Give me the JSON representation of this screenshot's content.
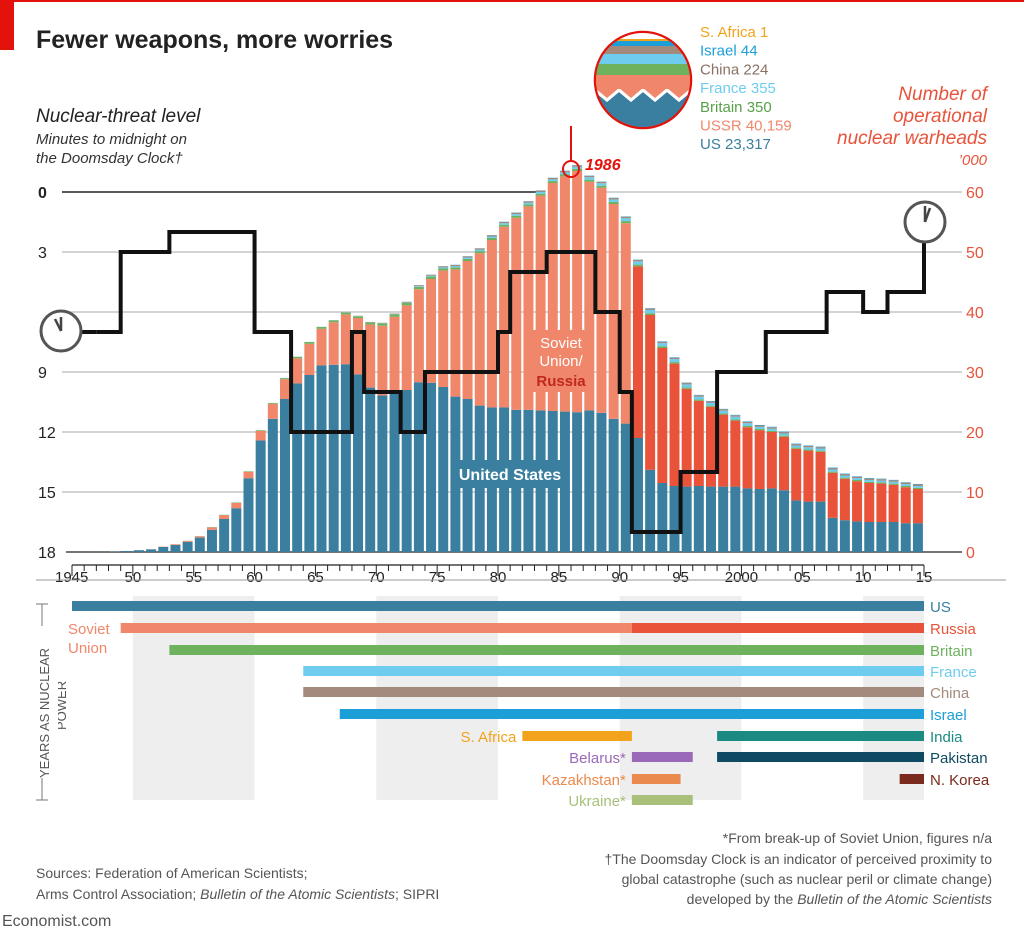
{
  "header": {
    "title": "Fewer weapons, more worries",
    "left_axis_title": "Nuclear-threat level",
    "left_axis_sub1": "Minutes to midnight on",
    "left_axis_sub2": "the Doomsday Clock†",
    "right_axis_title1": "Number of",
    "right_axis_title2": "operational",
    "right_axis_title3": "nuclear warheads",
    "right_axis_unit": "’000",
    "peak_year_label": "1986"
  },
  "colors": {
    "us": "#3a7f9f",
    "ussr": "#f0876b",
    "russia": "#e8533a",
    "britain": "#6fb25e",
    "france": "#6ecdee",
    "china": "#a28a7c",
    "israel": "#1b9fd6",
    "south_africa": "#f2a31c",
    "india": "#1a8a82",
    "pakistan": "#0f4a63",
    "belarus": "#9a6ab8",
    "kazakhstan": "#ea8a4e",
    "ukraine": "#a8c07a",
    "north_korea": "#7a2a1c",
    "accent_red": "#e3120b",
    "label_red": "#e8533a",
    "clock_line": "#111111",
    "grid": "#bbbbbb",
    "text": "#222222",
    "muted": "#555555"
  },
  "legend_1986": [
    {
      "country": "S. Africa",
      "value": "1",
      "color": "#f2a31c"
    },
    {
      "country": "Israel",
      "value": "44",
      "color": "#1b9fd6"
    },
    {
      "country": "China",
      "value": "224",
      "color": "#8a7264"
    },
    {
      "country": "France",
      "value": "355",
      "color": "#6ecdee"
    },
    {
      "country": "Britain",
      "value": "350",
      "color": "#5aa04a"
    },
    {
      "country": "USSR",
      "value": "40,159",
      "color": "#f0876b"
    },
    {
      "country": "US",
      "value": "23,317",
      "color": "#3a7f9f"
    }
  ],
  "chart_data": {
    "type": "bar",
    "subtype": "stacked bar with step line",
    "title": "Fewer weapons, more worries",
    "xlim": [
      1945,
      2015
    ],
    "x_ticks": [
      "1945",
      "50",
      "55",
      "60",
      "65",
      "70",
      "75",
      "80",
      "85",
      "90",
      "95",
      "2000",
      "05",
      "10",
      "15"
    ],
    "right_axis": {
      "label": "Number of operational nuclear warheads, '000",
      "range": [
        0,
        60
      ],
      "ticks": [
        "0",
        "10",
        "20",
        "30",
        "40",
        "50",
        "60"
      ]
    },
    "left_axis": {
      "label": "Nuclear-threat level: minutes to midnight on the Doomsday Clock",
      "range": [
        0,
        18
      ],
      "ticks": [
        "0",
        "3",
        "9",
        "12",
        "15",
        "18"
      ],
      "inverted": true
    },
    "years": [
      1945,
      1946,
      1947,
      1948,
      1949,
      1950,
      1951,
      1952,
      1953,
      1954,
      1955,
      1956,
      1957,
      1958,
      1959,
      1960,
      1961,
      1962,
      1963,
      1964,
      1965,
      1966,
      1967,
      1968,
      1969,
      1970,
      1971,
      1972,
      1973,
      1974,
      1975,
      1976,
      1977,
      1978,
      1979,
      1980,
      1981,
      1982,
      1983,
      1984,
      1985,
      1986,
      1987,
      1988,
      1989,
      1990,
      1991,
      1992,
      1993,
      1994,
      1995,
      1996,
      1997,
      1998,
      1999,
      2000,
      2001,
      2002,
      2003,
      2004,
      2005,
      2006,
      2007,
      2008,
      2009,
      2010,
      2011,
      2012,
      2013,
      2014
    ],
    "series": [
      {
        "name": "US",
        "values": [
          0.002,
          0.009,
          0.013,
          0.05,
          0.17,
          0.3,
          0.44,
          0.84,
          1.17,
          1.7,
          2.4,
          3.7,
          5.5,
          7.3,
          12.3,
          18.6,
          22.2,
          25.5,
          28.1,
          29.5,
          31.1,
          31.2,
          31.3,
          29.6,
          27.4,
          26.1,
          26.4,
          27.0,
          28.3,
          28.2,
          27.5,
          25.9,
          25.5,
          24.4,
          24.1,
          24.1,
          23.7,
          23.7,
          23.6,
          23.5,
          23.4,
          23.3,
          23.6,
          23.2,
          22.2,
          21.4,
          19.0,
          13.7,
          11.5,
          11.0,
          10.9,
          11.0,
          10.9,
          10.9,
          10.9,
          10.6,
          10.5,
          10.6,
          10.3,
          8.6,
          8.4,
          8.4,
          5.7,
          5.3,
          5.1,
          5.0,
          5.0,
          5.0,
          4.8,
          4.8
        ]
      },
      {
        "name": "USSR / Russia",
        "values": [
          0,
          0,
          0,
          0,
          0.001,
          0.005,
          0.025,
          0.05,
          0.12,
          0.15,
          0.2,
          0.4,
          0.65,
          0.87,
          1.05,
          1.6,
          2.5,
          3.3,
          4.2,
          5.2,
          6.1,
          7.1,
          8.3,
          9.4,
          10.5,
          11.6,
          12.8,
          14.1,
          15.5,
          17.3,
          19.4,
          21.2,
          23.0,
          25.4,
          27.9,
          30.1,
          32.0,
          33.9,
          35.8,
          38.0,
          39.2,
          40.2,
          38.1,
          37.5,
          35.8,
          33.4,
          28.6,
          25.8,
          22.5,
          20.4,
          16.3,
          14.2,
          13.3,
          12.0,
          11.0,
          10.2,
          9.8,
          9.4,
          8.9,
          8.6,
          8.5,
          8.3,
          7.5,
          6.9,
          6.7,
          6.5,
          6.4,
          6.2,
          6.0,
          5.7
        ]
      },
      {
        "name": "Britain",
        "values": [
          0,
          0,
          0,
          0,
          0,
          0,
          0,
          0.001,
          0.005,
          0.02,
          0.04,
          0.05,
          0.06,
          0.08,
          0.1,
          0.11,
          0.14,
          0.18,
          0.24,
          0.3,
          0.3,
          0.3,
          0.3,
          0.3,
          0.35,
          0.38,
          0.39,
          0.4,
          0.4,
          0.4,
          0.35,
          0.35,
          0.35,
          0.35,
          0.35,
          0.35,
          0.35,
          0.335,
          0.32,
          0.32,
          0.32,
          0.35,
          0.35,
          0.35,
          0.35,
          0.35,
          0.3,
          0.3,
          0.3,
          0.25,
          0.23,
          0.23,
          0.2,
          0.2,
          0.2,
          0.2,
          0.2,
          0.2,
          0.2,
          0.2,
          0.2,
          0.2,
          0.2,
          0.2,
          0.2,
          0.2,
          0.2,
          0.2,
          0.2,
          0.2
        ]
      },
      {
        "name": "France",
        "values": [
          0,
          0,
          0,
          0,
          0,
          0,
          0,
          0,
          0,
          0,
          0,
          0,
          0,
          0,
          0,
          0.001,
          0.002,
          0.004,
          0.006,
          0.01,
          0.03,
          0.036,
          0.036,
          0.036,
          0.036,
          0.036,
          0.045,
          0.07,
          0.116,
          0.145,
          0.188,
          0.212,
          0.228,
          0.235,
          0.235,
          0.25,
          0.274,
          0.274,
          0.279,
          0.28,
          0.36,
          0.355,
          0.42,
          0.41,
          0.41,
          0.5,
          0.54,
          0.54,
          0.52,
          0.51,
          0.5,
          0.45,
          0.45,
          0.45,
          0.45,
          0.47,
          0.35,
          0.35,
          0.35,
          0.35,
          0.35,
          0.35,
          0.35,
          0.35,
          0.3,
          0.3,
          0.3,
          0.3,
          0.3,
          0.3
        ]
      },
      {
        "name": "China",
        "values": [
          0,
          0,
          0,
          0,
          0,
          0,
          0,
          0,
          0,
          0,
          0,
          0,
          0,
          0,
          0,
          0,
          0,
          0,
          0,
          0.001,
          0.005,
          0.02,
          0.025,
          0.035,
          0.05,
          0.075,
          0.1,
          0.13,
          0.15,
          0.17,
          0.185,
          0.19,
          0.2,
          0.21,
          0.215,
          0.22,
          0.23,
          0.23,
          0.235,
          0.235,
          0.222,
          0.224,
          0.227,
          0.232,
          0.233,
          0.232,
          0.234,
          0.234,
          0.236,
          0.236,
          0.234,
          0.234,
          0.232,
          0.232,
          0.232,
          0.232,
          0.235,
          0.235,
          0.235,
          0.235,
          0.235,
          0.235,
          0.24,
          0.24,
          0.24,
          0.24,
          0.24,
          0.24,
          0.25,
          0.26
        ]
      },
      {
        "name": "Israel",
        "values": [
          0,
          0,
          0,
          0,
          0,
          0,
          0,
          0,
          0,
          0,
          0,
          0,
          0,
          0,
          0,
          0,
          0,
          0,
          0,
          0,
          0,
          0,
          0.002,
          0.004,
          0.006,
          0.008,
          0.01,
          0.013,
          0.015,
          0.017,
          0.02,
          0.022,
          0.024,
          0.026,
          0.028,
          0.031,
          0.033,
          0.036,
          0.038,
          0.04,
          0.042,
          0.044,
          0.046,
          0.048,
          0.05,
          0.053,
          0.055,
          0.058,
          0.06,
          0.063,
          0.065,
          0.067,
          0.07,
          0.072,
          0.075,
          0.078,
          0.08,
          0.08,
          0.08,
          0.08,
          0.08,
          0.08,
          0.08,
          0.08,
          0.08,
          0.08,
          0.08,
          0.08,
          0.08,
          0.08
        ]
      },
      {
        "name": "S. Africa",
        "values": [
          0,
          0,
          0,
          0,
          0,
          0,
          0,
          0,
          0,
          0,
          0,
          0,
          0,
          0,
          0,
          0,
          0,
          0,
          0,
          0,
          0,
          0,
          0,
          0,
          0,
          0,
          0,
          0,
          0,
          0,
          0,
          0,
          0,
          0,
          0,
          0.001,
          0.001,
          0.001,
          0.001,
          0.001,
          0.001,
          0.001,
          0.002,
          0.004,
          0.005,
          0.006,
          0.006,
          0,
          0,
          0,
          0,
          0,
          0,
          0,
          0,
          0,
          0,
          0,
          0,
          0,
          0,
          0,
          0,
          0,
          0,
          0,
          0,
          0,
          0,
          0
        ]
      }
    ],
    "doomsday_clock": {
      "name": "Minutes to midnight",
      "steps": [
        {
          "year": 1947,
          "minutes": 7
        },
        {
          "year": 1949,
          "minutes": 3
        },
        {
          "year": 1953,
          "minutes": 2
        },
        {
          "year": 1960,
          "minutes": 7
        },
        {
          "year": 1963,
          "minutes": 12
        },
        {
          "year": 1968,
          "minutes": 7
        },
        {
          "year": 1969,
          "minutes": 10
        },
        {
          "year": 1972,
          "minutes": 12
        },
        {
          "year": 1974,
          "minutes": 9
        },
        {
          "year": 1980,
          "minutes": 7
        },
        {
          "year": 1981,
          "minutes": 4
        },
        {
          "year": 1984,
          "minutes": 3
        },
        {
          "year": 1988,
          "minutes": 6
        },
        {
          "year": 1990,
          "minutes": 10
        },
        {
          "year": 1991,
          "minutes": 17
        },
        {
          "year": 1995,
          "minutes": 14
        },
        {
          "year": 1998,
          "minutes": 9
        },
        {
          "year": 2002,
          "minutes": 7
        },
        {
          "year": 2007,
          "minutes": 5
        },
        {
          "year": 2010,
          "minutes": 6
        },
        {
          "year": 2012,
          "minutes": 5
        },
        {
          "year": 2015,
          "minutes": 3
        }
      ],
      "end_year": 2015
    },
    "annotations": [
      "United States",
      "Soviet",
      "Union/",
      "Russia",
      "1986"
    ]
  },
  "timeline": {
    "axis_label1": "YEARS AS NUCLEAR",
    "axis_label2": "POWER",
    "rows": [
      {
        "label": "US",
        "side": "right",
        "color": "#3a7f9f",
        "segments": [
          {
            "start": 1945,
            "end": 2015,
            "color": "#3a7f9f"
          }
        ]
      },
      {
        "label": "Russia",
        "side": "right",
        "color": "#e8533a",
        "segments": [
          {
            "start": 1949,
            "end": 1991,
            "color": "#f0876b"
          },
          {
            "start": 1991,
            "end": 2015,
            "color": "#e8533a"
          }
        ]
      },
      {
        "label": "Britain",
        "side": "right",
        "color": "#6fb25e",
        "segments": [
          {
            "start": 1953,
            "end": 2015,
            "color": "#6fb25e"
          }
        ]
      },
      {
        "label": "France",
        "side": "right",
        "color": "#6ecdee",
        "segments": [
          {
            "start": 1964,
            "end": 2015,
            "color": "#6ecdee"
          }
        ]
      },
      {
        "label": "China",
        "side": "right",
        "color": "#a28a7c",
        "segments": [
          {
            "start": 1964,
            "end": 2015,
            "color": "#a28a7c"
          }
        ]
      },
      {
        "label": "Israel",
        "side": "right",
        "color": "#1b9fd6",
        "segments": [
          {
            "start": 1967,
            "end": 2015,
            "color": "#1b9fd6"
          }
        ]
      },
      {
        "label": "India",
        "side": "right",
        "color": "#1a8a82",
        "segments": [
          {
            "start": 1998,
            "end": 2015,
            "color": "#1a8a82"
          }
        ]
      },
      {
        "label": "Pakistan",
        "side": "right",
        "color": "#0f4a63",
        "segments": [
          {
            "start": 1998,
            "end": 2015,
            "color": "#0f4a63"
          }
        ]
      },
      {
        "label": "N. Korea",
        "side": "right",
        "color": "#7a2a1c",
        "segments": [
          {
            "start": 2013,
            "end": 2015,
            "color": "#7a2a1c"
          }
        ]
      }
    ],
    "soviet_label1": "Soviet",
    "soviet_label2": "Union",
    "short_rows": [
      {
        "label": "S. Africa",
        "color": "#f2a31c",
        "start": 1982,
        "end": 1991
      },
      {
        "label": "Belarus*",
        "color": "#9a6ab8",
        "start": 1991,
        "end": 1996
      },
      {
        "label": "Kazakhstan*",
        "color": "#ea8a4e",
        "start": 1991,
        "end": 1995
      },
      {
        "label": "Ukraine*",
        "color": "#a8c07a",
        "start": 1991,
        "end": 1996
      }
    ]
  },
  "footer": {
    "sources1": "Sources: Federation of American Scientists;",
    "sources2a": "Arms Control Association; ",
    "sources2b": "Bulletin of the Atomic Scientists",
    "sources2c": "; SIPRI",
    "note1": "*From break-up of Soviet Union, figures n/a",
    "note2": "†The Doomsday Clock is an indicator of perceived proximity to",
    "note3": "global catastrophe (such as nuclear peril or climate change)",
    "note4a": "developed by the ",
    "note4b": "Bulletin of the Atomic Scientists",
    "brand": "Economist.com"
  }
}
